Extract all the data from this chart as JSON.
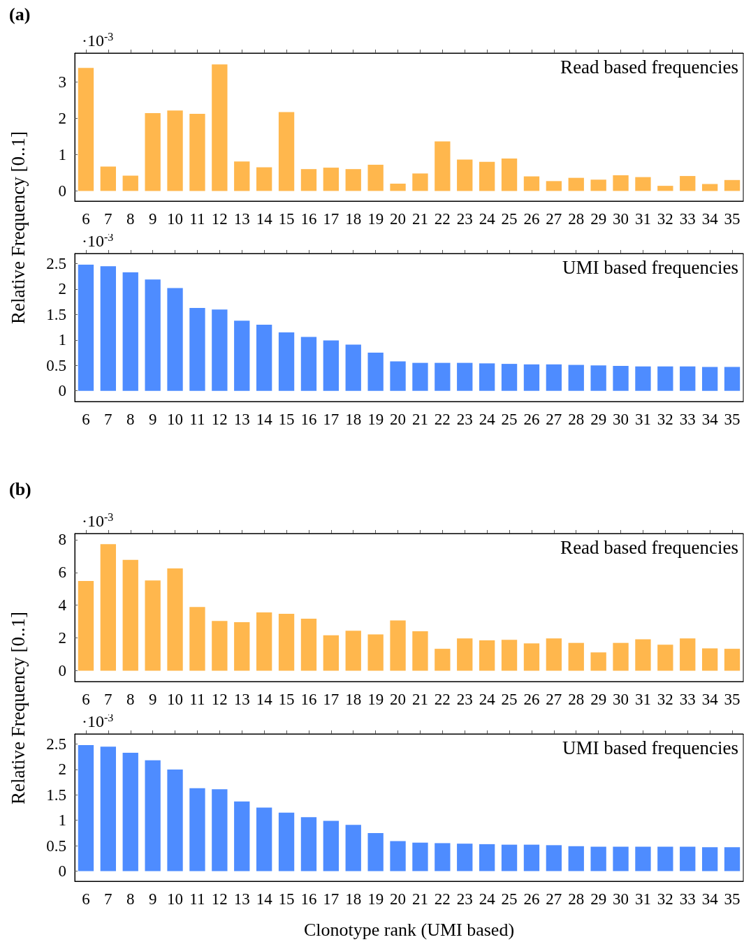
{
  "chart_data": [
    {
      "type": "bar",
      "title": "(a)",
      "ylabel": "Relative Frequency [0..1]",
      "annotations": [
        "·10$^{-3}$",
        "Read based frequencies"
      ],
      "categories": [
        "6",
        "7",
        "8",
        "9",
        "10",
        "11",
        "12",
        "13",
        "14",
        "15",
        "16",
        "17",
        "18",
        "19",
        "20",
        "21",
        "22",
        "23",
        "24",
        "25",
        "26",
        "27",
        "28",
        "29",
        "30",
        "31",
        "32",
        "33",
        "34",
        "35"
      ],
      "color": "#ffb74d",
      "values": [
        3.38,
        0.67,
        0.42,
        2.14,
        2.21,
        2.12,
        3.48,
        0.81,
        0.65,
        2.17,
        0.6,
        0.64,
        0.6,
        0.72,
        0.2,
        0.48,
        1.36,
        0.86,
        0.8,
        0.89,
        0.4,
        0.27,
        0.36,
        0.31,
        0.43,
        0.38,
        0.14,
        0.41,
        0.19,
        0.3
      ],
      "ylim": [
        -0.28,
        3.79
      ],
      "yticks": [
        0,
        1,
        2,
        3
      ],
      "grid": false
    },
    {
      "type": "bar",
      "annotations": [
        "·10$^{-3}$",
        "UMI based frequencies"
      ],
      "categories": [
        "6",
        "7",
        "8",
        "9",
        "10",
        "11",
        "12",
        "13",
        "14",
        "15",
        "16",
        "17",
        "18",
        "19",
        "20",
        "21",
        "22",
        "23",
        "24",
        "25",
        "26",
        "27",
        "28",
        "29",
        "30",
        "31",
        "32",
        "33",
        "34",
        "35"
      ],
      "color": "#4e8cff",
      "values": [
        2.48,
        2.45,
        2.33,
        2.19,
        2.02,
        1.63,
        1.6,
        1.38,
        1.3,
        1.15,
        1.06,
        0.99,
        0.91,
        0.75,
        0.58,
        0.55,
        0.55,
        0.55,
        0.54,
        0.53,
        0.52,
        0.52,
        0.51,
        0.5,
        0.49,
        0.48,
        0.48,
        0.48,
        0.47,
        0.47
      ],
      "ylim": [
        -0.21,
        2.7
      ],
      "yticks": [
        0,
        0.5,
        1,
        1.5,
        2,
        2.5
      ],
      "grid": false
    },
    {
      "type": "bar",
      "title": "(b)",
      "ylabel": "Relative Frequency [0..1]",
      "annotations": [
        "·10$^{-3}$",
        "Read based frequencies"
      ],
      "categories": [
        "6",
        "7",
        "8",
        "9",
        "10",
        "11",
        "12",
        "13",
        "14",
        "15",
        "16",
        "17",
        "18",
        "19",
        "20",
        "21",
        "22",
        "23",
        "24",
        "25",
        "26",
        "27",
        "28",
        "29",
        "30",
        "31",
        "32",
        "33",
        "34",
        "35"
      ],
      "color": "#ffb74d",
      "values": [
        5.48,
        7.73,
        6.77,
        5.51,
        6.25,
        3.89,
        3.04,
        2.96,
        3.56,
        3.48,
        3.18,
        2.16,
        2.44,
        2.22,
        3.07,
        2.41,
        1.34,
        1.97,
        1.86,
        1.89,
        1.67,
        1.97,
        1.7,
        1.12,
        1.7,
        1.92,
        1.59,
        1.97,
        1.37,
        1.34
      ],
      "ylim": [
        -0.66,
        8.38
      ],
      "yticks": [
        0,
        2,
        4,
        6,
        8
      ],
      "grid": false
    },
    {
      "type": "bar",
      "xlabel": "Clonotype rank (UMI based)",
      "annotations": [
        "·10$^{-3}$",
        "UMI based frequencies"
      ],
      "categories": [
        "6",
        "7",
        "8",
        "9",
        "10",
        "11",
        "12",
        "13",
        "14",
        "15",
        "16",
        "17",
        "18",
        "19",
        "20",
        "21",
        "22",
        "23",
        "24",
        "25",
        "26",
        "27",
        "28",
        "29",
        "30",
        "31",
        "32",
        "33",
        "34",
        "35"
      ],
      "color": "#4e8cff",
      "values": [
        2.48,
        2.45,
        2.33,
        2.18,
        2.0,
        1.63,
        1.61,
        1.37,
        1.25,
        1.15,
        1.06,
        0.99,
        0.91,
        0.75,
        0.59,
        0.56,
        0.55,
        0.54,
        0.53,
        0.52,
        0.52,
        0.51,
        0.49,
        0.48,
        0.48,
        0.48,
        0.48,
        0.48,
        0.47,
        0.47
      ],
      "ylim": [
        -0.2,
        2.7
      ],
      "yticks": [
        0,
        0.5,
        1,
        1.5,
        2,
        2.5
      ],
      "grid": false
    }
  ]
}
